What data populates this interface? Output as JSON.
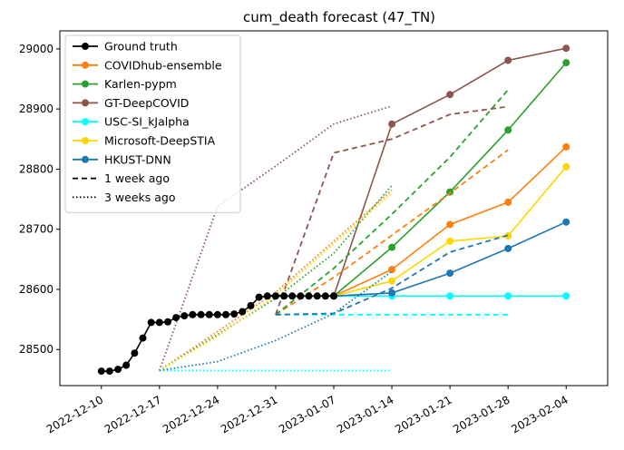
{
  "chart_data": {
    "type": "line",
    "title": "cum_death forecast (47_TN)",
    "xlabel": "",
    "ylabel": "",
    "ylim": [
      28440,
      29030
    ],
    "xlim": [
      "2022-12-05",
      "2023-02-09"
    ],
    "xticks": [
      "2022-12-10",
      "2022-12-17",
      "2022-12-24",
      "2022-12-31",
      "2023-01-07",
      "2023-01-14",
      "2023-01-21",
      "2023-01-28",
      "2023-02-04"
    ],
    "yticks": [
      28500,
      28600,
      28700,
      28800,
      28900,
      29000
    ],
    "legend_position": "top-left",
    "legend": [
      {
        "label": "Ground truth",
        "color": "#000000",
        "style": "solid",
        "marker": true
      },
      {
        "label": "COVIDhub-ensemble",
        "color": "#ff7f0e",
        "style": "solid",
        "marker": true
      },
      {
        "label": "Karlen-pypm",
        "color": "#2ca02c",
        "style": "solid",
        "marker": true
      },
      {
        "label": "GT-DeepCOVID",
        "color": "#8c564b",
        "style": "solid",
        "marker": true
      },
      {
        "label": "USC-SI_kJalpha",
        "color": "#00ffff",
        "style": "solid",
        "marker": true
      },
      {
        "label": "Microsoft-DeepSTIA",
        "color": "#ffd700",
        "style": "solid",
        "marker": true
      },
      {
        "label": "HKUST-DNN",
        "color": "#1f77b4",
        "style": "solid",
        "marker": true
      },
      {
        "label": "1 week ago",
        "color": "#000000",
        "style": "dashed",
        "marker": false
      },
      {
        "label": "3 weeks ago",
        "color": "#000000",
        "style": "dotted",
        "marker": false
      }
    ],
    "series": [
      {
        "name": "Ground truth",
        "color": "#000000",
        "style": "solid",
        "marker": true,
        "x": [
          "2022-12-10",
          "2022-12-11",
          "2022-12-12",
          "2022-12-13",
          "2022-12-14",
          "2022-12-15",
          "2022-12-16",
          "2022-12-17",
          "2022-12-18",
          "2022-12-19",
          "2022-12-20",
          "2022-12-21",
          "2022-12-22",
          "2022-12-23",
          "2022-12-24",
          "2022-12-25",
          "2022-12-26",
          "2022-12-27",
          "2022-12-28",
          "2022-12-29",
          "2022-12-30",
          "2022-12-31",
          "2023-01-01",
          "2023-01-02",
          "2023-01-03",
          "2023-01-04",
          "2023-01-05",
          "2023-01-06",
          "2023-01-07"
        ],
        "y": [
          28464,
          28464,
          28467,
          28474,
          28494,
          28519,
          28545,
          28545,
          28546,
          28553,
          28556,
          28558,
          28558,
          28558,
          28558,
          28558,
          28559,
          28563,
          28573,
          28587,
          28589,
          28589,
          28589,
          28589,
          28589,
          28589,
          28589,
          28589,
          28589
        ]
      },
      {
        "name": "COVIDhub-ensemble",
        "color": "#ff7f0e",
        "style": "solid",
        "marker": true,
        "x": [
          "2023-01-07",
          "2023-01-14",
          "2023-01-21",
          "2023-01-28",
          "2023-02-04"
        ],
        "y": [
          28589,
          28633,
          28708,
          28745,
          28837
        ]
      },
      {
        "name": "Karlen-pypm",
        "color": "#2ca02c",
        "style": "solid",
        "marker": true,
        "x": [
          "2023-01-07",
          "2023-01-14",
          "2023-01-21",
          "2023-01-28",
          "2023-02-04"
        ],
        "y": [
          28589,
          28670,
          28762,
          28865,
          28977
        ]
      },
      {
        "name": "GT-DeepCOVID",
        "color": "#8c564b",
        "style": "solid",
        "marker": true,
        "x": [
          "2023-01-07",
          "2023-01-14",
          "2023-01-21",
          "2023-01-28",
          "2023-02-04"
        ],
        "y": [
          28589,
          28875,
          28924,
          28981,
          29001
        ]
      },
      {
        "name": "USC-SI_kJalpha",
        "color": "#00ffff",
        "style": "solid",
        "marker": true,
        "x": [
          "2023-01-07",
          "2023-01-14",
          "2023-01-21",
          "2023-01-28",
          "2023-02-04"
        ],
        "y": [
          28589,
          28589,
          28589,
          28589,
          28589
        ]
      },
      {
        "name": "Microsoft-DeepSTIA",
        "color": "#ffd700",
        "style": "solid",
        "marker": true,
        "x": [
          "2023-01-07",
          "2023-01-14",
          "2023-01-21",
          "2023-01-28",
          "2023-02-04"
        ],
        "y": [
          28589,
          28614,
          28680,
          28689,
          28804
        ]
      },
      {
        "name": "HKUST-DNN",
        "color": "#1f77b4",
        "style": "solid",
        "marker": true,
        "x": [
          "2023-01-07",
          "2023-01-14",
          "2023-01-21",
          "2023-01-28",
          "2023-02-04"
        ],
        "y": [
          28589,
          28594,
          28627,
          28668,
          28712
        ]
      },
      {
        "name": "COVIDhub-ensemble (1 week ago)",
        "color": "#ff7f0e",
        "style": "dashed",
        "marker": false,
        "x": [
          "2022-12-31",
          "2023-01-07",
          "2023-01-14",
          "2023-01-21",
          "2023-01-28"
        ],
        "y": [
          28558,
          28620,
          28690,
          28760,
          28832
        ]
      },
      {
        "name": "Karlen-pypm (1 week ago)",
        "color": "#2ca02c",
        "style": "dashed",
        "marker": false,
        "x": [
          "2022-12-31",
          "2023-01-07",
          "2023-01-14",
          "2023-01-21",
          "2023-01-28"
        ],
        "y": [
          28558,
          28635,
          28725,
          28820,
          28932
        ]
      },
      {
        "name": "GT-DeepCOVID (1 week ago)",
        "color": "#8c564b",
        "style": "dashed",
        "marker": false,
        "x": [
          "2022-12-31",
          "2023-01-07",
          "2023-01-14",
          "2023-01-21",
          "2023-01-28"
        ],
        "y": [
          28558,
          28827,
          28850,
          28891,
          28904
        ]
      },
      {
        "name": "USC-SI_kJalpha (1 week ago)",
        "color": "#00ffff",
        "style": "dashed",
        "marker": false,
        "x": [
          "2022-12-31",
          "2023-01-07",
          "2023-01-14",
          "2023-01-21",
          "2023-01-28"
        ],
        "y": [
          28558,
          28558,
          28558,
          28558,
          28558
        ]
      },
      {
        "name": "HKUST-DNN (1 week ago)",
        "color": "#1f77b4",
        "style": "dashed",
        "marker": false,
        "x": [
          "2022-12-31",
          "2023-01-07",
          "2023-01-14",
          "2023-01-21",
          "2023-01-28"
        ],
        "y": [
          28558,
          28560,
          28602,
          28662,
          28690
        ]
      },
      {
        "name": "COVIDhub-ensemble (3 weeks ago)",
        "color": "#ff7f0e",
        "style": "dotted",
        "marker": false,
        "x": [
          "2022-12-17",
          "2022-12-24",
          "2022-12-31",
          "2023-01-07",
          "2023-01-14"
        ],
        "y": [
          28465,
          28530,
          28595,
          28680,
          28765
        ]
      },
      {
        "name": "Karlen-pypm (3 weeks ago)",
        "color": "#2ca02c",
        "style": "dotted",
        "marker": false,
        "x": [
          "2022-12-17",
          "2022-12-24",
          "2022-12-31",
          "2023-01-07",
          "2023-01-14"
        ],
        "y": [
          28465,
          28525,
          28585,
          28660,
          28773
        ]
      },
      {
        "name": "GT-DeepCOVID (3 weeks ago)",
        "color": "#8c564b",
        "style": "dotted",
        "marker": false,
        "x": [
          "2022-12-17",
          "2022-12-24",
          "2022-12-31",
          "2023-01-07",
          "2023-01-14"
        ],
        "y": [
          28465,
          28738,
          28805,
          28875,
          28905
        ]
      },
      {
        "name": "USC-SI_kJalpha (3 weeks ago)",
        "color": "#00ffff",
        "style": "dotted",
        "marker": false,
        "x": [
          "2022-12-17",
          "2022-12-24",
          "2022-12-31",
          "2023-01-07",
          "2023-01-14"
        ],
        "y": [
          28465,
          28465,
          28465,
          28465,
          28465
        ]
      },
      {
        "name": "Microsoft-DeepSTIA (3 weeks ago)",
        "color": "#ffd700",
        "style": "dotted",
        "marker": false,
        "x": [
          "2022-12-17",
          "2022-12-24",
          "2022-12-31",
          "2023-01-07",
          "2023-01-14"
        ],
        "y": [
          28465,
          28522,
          28590,
          28676,
          28760
        ]
      },
      {
        "name": "HKUST-DNN (3 weeks ago)",
        "color": "#1f77b4",
        "style": "dotted",
        "marker": false,
        "x": [
          "2022-12-17",
          "2022-12-24",
          "2022-12-31",
          "2023-01-07",
          "2023-01-14"
        ],
        "y": [
          28465,
          28480,
          28515,
          28560,
          28630
        ]
      }
    ]
  }
}
